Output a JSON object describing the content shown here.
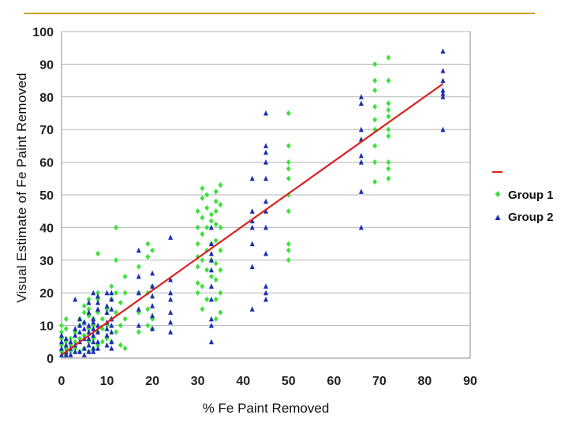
{
  "chart_data": {
    "type": "scatter",
    "title": "",
    "xlabel": "% Fe Paint Removed",
    "ylabel": "Visual Estimate of Fe Paint Removed",
    "xlim": [
      0,
      90
    ],
    "ylim": [
      0,
      100
    ],
    "x_ticks": [
      "0",
      "10",
      "20",
      "30",
      "40",
      "50",
      "60",
      "70",
      "80",
      "90"
    ],
    "y_ticks": [
      "0",
      "10",
      "20",
      "30",
      "40",
      "50",
      "60",
      "70",
      "80",
      "90",
      "100"
    ],
    "grid": "horizontal",
    "legend_position": "right",
    "fit_line": {
      "color": "#dd2020",
      "points": [
        [
          0,
          1
        ],
        [
          84,
          84
        ]
      ]
    },
    "series": [
      {
        "name": "Group 1",
        "marker": "diamond",
        "color": "#3ee03e",
        "points": [
          [
            0,
            2
          ],
          [
            0,
            4
          ],
          [
            0,
            6
          ],
          [
            0,
            8
          ],
          [
            0,
            10
          ],
          [
            1,
            1
          ],
          [
            1,
            3
          ],
          [
            1,
            5
          ],
          [
            1,
            9
          ],
          [
            1,
            12
          ],
          [
            2,
            2
          ],
          [
            2,
            4
          ],
          [
            2,
            6
          ],
          [
            3,
            3
          ],
          [
            3,
            5
          ],
          [
            3,
            8
          ],
          [
            4,
            2
          ],
          [
            4,
            6
          ],
          [
            4,
            10
          ],
          [
            4,
            12
          ],
          [
            5,
            3
          ],
          [
            5,
            7
          ],
          [
            5,
            11
          ],
          [
            5,
            14
          ],
          [
            5,
            16
          ],
          [
            6,
            2
          ],
          [
            6,
            5
          ],
          [
            6,
            9
          ],
          [
            6,
            13
          ],
          [
            6,
            15
          ],
          [
            6,
            18
          ],
          [
            7,
            3
          ],
          [
            7,
            6
          ],
          [
            7,
            10
          ],
          [
            7,
            12
          ],
          [
            8,
            4
          ],
          [
            8,
            8
          ],
          [
            8,
            14
          ],
          [
            8,
            18
          ],
          [
            8,
            20
          ],
          [
            8,
            32
          ],
          [
            9,
            5
          ],
          [
            9,
            9
          ],
          [
            9,
            12
          ],
          [
            10,
            6
          ],
          [
            10,
            10
          ],
          [
            10,
            15
          ],
          [
            11,
            5
          ],
          [
            11,
            12
          ],
          [
            11,
            18
          ],
          [
            11,
            22
          ],
          [
            12,
            8
          ],
          [
            12,
            14
          ],
          [
            12,
            20
          ],
          [
            12,
            30
          ],
          [
            12,
            40
          ],
          [
            13,
            4
          ],
          [
            13,
            10
          ],
          [
            13,
            17
          ],
          [
            14,
            3
          ],
          [
            14,
            12
          ],
          [
            14,
            20
          ],
          [
            14,
            25
          ],
          [
            17,
            8
          ],
          [
            17,
            14
          ],
          [
            17,
            20
          ],
          [
            17,
            28
          ],
          [
            19,
            10
          ],
          [
            19,
            15
          ],
          [
            19,
            20
          ],
          [
            19,
            31
          ],
          [
            19,
            35
          ],
          [
            20,
            9
          ],
          [
            20,
            12
          ],
          [
            20,
            22
          ],
          [
            20,
            33
          ],
          [
            30,
            20
          ],
          [
            30,
            23
          ],
          [
            30,
            28
          ],
          [
            30,
            31
          ],
          [
            30,
            35
          ],
          [
            30,
            40
          ],
          [
            30,
            45
          ],
          [
            31,
            15
          ],
          [
            31,
            22
          ],
          [
            31,
            30
          ],
          [
            31,
            38
          ],
          [
            31,
            43
          ],
          [
            31,
            49
          ],
          [
            31,
            52
          ],
          [
            32,
            18
          ],
          [
            32,
            27
          ],
          [
            32,
            33
          ],
          [
            32,
            40
          ],
          [
            32,
            46
          ],
          [
            32,
            50
          ],
          [
            33,
            25
          ],
          [
            33,
            30
          ],
          [
            33,
            35
          ],
          [
            33,
            42
          ],
          [
            33,
            44
          ],
          [
            34,
            12
          ],
          [
            34,
            18
          ],
          [
            34,
            24
          ],
          [
            34,
            29
          ],
          [
            34,
            36
          ],
          [
            34,
            41
          ],
          [
            34,
            45
          ],
          [
            34,
            48
          ],
          [
            34,
            51
          ],
          [
            35,
            14
          ],
          [
            35,
            20
          ],
          [
            35,
            27
          ],
          [
            35,
            33
          ],
          [
            35,
            40
          ],
          [
            35,
            47
          ],
          [
            35,
            53
          ],
          [
            50,
            30
          ],
          [
            50,
            33
          ],
          [
            50,
            35
          ],
          [
            50,
            45
          ],
          [
            50,
            50
          ],
          [
            50,
            55
          ],
          [
            50,
            58
          ],
          [
            50,
            60
          ],
          [
            50,
            65
          ],
          [
            50,
            75
          ],
          [
            69,
            54
          ],
          [
            69,
            60
          ],
          [
            69,
            65
          ],
          [
            69,
            70
          ],
          [
            69,
            73
          ],
          [
            69,
            77
          ],
          [
            69,
            82
          ],
          [
            69,
            85
          ],
          [
            69,
            90
          ],
          [
            72,
            55
          ],
          [
            72,
            58
          ],
          [
            72,
            60
          ],
          [
            72,
            68
          ],
          [
            72,
            70
          ],
          [
            72,
            74
          ],
          [
            72,
            76
          ],
          [
            72,
            78
          ],
          [
            72,
            85
          ],
          [
            72,
            92
          ]
        ]
      },
      {
        "name": "Group 2",
        "marker": "triangle",
        "color": "#1c2fb4",
        "points": [
          [
            0,
            1
          ],
          [
            0,
            3
          ],
          [
            0,
            5
          ],
          [
            0,
            7
          ],
          [
            1,
            1
          ],
          [
            1,
            2
          ],
          [
            1,
            4
          ],
          [
            1,
            6
          ],
          [
            2,
            1
          ],
          [
            2,
            3
          ],
          [
            2,
            5
          ],
          [
            3,
            2
          ],
          [
            3,
            4
          ],
          [
            3,
            7
          ],
          [
            3,
            9
          ],
          [
            3,
            18
          ],
          [
            4,
            2
          ],
          [
            4,
            5
          ],
          [
            4,
            8
          ],
          [
            4,
            10
          ],
          [
            4,
            12
          ],
          [
            5,
            1
          ],
          [
            5,
            3
          ],
          [
            5,
            6
          ],
          [
            5,
            9
          ],
          [
            5,
            11
          ],
          [
            6,
            2
          ],
          [
            6,
            4
          ],
          [
            6,
            6
          ],
          [
            6,
            8
          ],
          [
            6,
            10
          ],
          [
            6,
            14
          ],
          [
            6,
            17
          ],
          [
            7,
            2
          ],
          [
            7,
            3
          ],
          [
            7,
            5
          ],
          [
            7,
            7
          ],
          [
            7,
            9
          ],
          [
            7,
            11
          ],
          [
            7,
            12
          ],
          [
            7,
            20
          ],
          [
            8,
            3
          ],
          [
            8,
            5
          ],
          [
            8,
            8
          ],
          [
            8,
            10
          ],
          [
            8,
            15
          ],
          [
            8,
            17
          ],
          [
            8,
            19
          ],
          [
            10,
            4
          ],
          [
            10,
            7
          ],
          [
            10,
            9
          ],
          [
            10,
            11
          ],
          [
            10,
            14
          ],
          [
            10,
            16
          ],
          [
            10,
            20
          ],
          [
            11,
            3
          ],
          [
            11,
            5
          ],
          [
            11,
            8
          ],
          [
            11,
            10
          ],
          [
            11,
            12
          ],
          [
            11,
            15
          ],
          [
            11,
            18
          ],
          [
            11,
            20
          ],
          [
            17,
            10
          ],
          [
            17,
            15
          ],
          [
            17,
            20
          ],
          [
            17,
            25
          ],
          [
            17,
            33
          ],
          [
            20,
            9
          ],
          [
            20,
            13
          ],
          [
            20,
            16
          ],
          [
            20,
            19
          ],
          [
            20,
            22
          ],
          [
            20,
            26
          ],
          [
            24,
            8
          ],
          [
            24,
            11
          ],
          [
            24,
            14
          ],
          [
            24,
            18
          ],
          [
            24,
            20
          ],
          [
            24,
            24
          ],
          [
            24,
            37
          ],
          [
            33,
            5
          ],
          [
            33,
            10
          ],
          [
            33,
            12
          ],
          [
            33,
            18
          ],
          [
            33,
            22
          ],
          [
            33,
            27
          ],
          [
            33,
            30
          ],
          [
            33,
            32
          ],
          [
            33,
            35
          ],
          [
            33,
            40
          ],
          [
            42,
            15
          ],
          [
            42,
            28
          ],
          [
            42,
            35
          ],
          [
            42,
            40
          ],
          [
            42,
            42
          ],
          [
            42,
            45
          ],
          [
            42,
            55
          ],
          [
            45,
            18
          ],
          [
            45,
            20
          ],
          [
            45,
            22
          ],
          [
            45,
            32
          ],
          [
            45,
            40
          ],
          [
            45,
            45
          ],
          [
            45,
            48
          ],
          [
            45,
            55
          ],
          [
            45,
            60
          ],
          [
            45,
            63
          ],
          [
            45,
            65
          ],
          [
            45,
            75
          ],
          [
            66,
            40
          ],
          [
            66,
            51
          ],
          [
            66,
            60
          ],
          [
            66,
            62
          ],
          [
            66,
            67
          ],
          [
            66,
            70
          ],
          [
            66,
            78
          ],
          [
            66,
            80
          ],
          [
            84,
            70
          ],
          [
            84,
            80
          ],
          [
            84,
            81
          ],
          [
            84,
            82
          ],
          [
            84,
            85
          ],
          [
            84,
            88
          ],
          [
            84,
            94
          ]
        ]
      }
    ]
  },
  "legend": {
    "line_label": "",
    "group1_label": "Group 1",
    "group2_label": "Group 2"
  }
}
